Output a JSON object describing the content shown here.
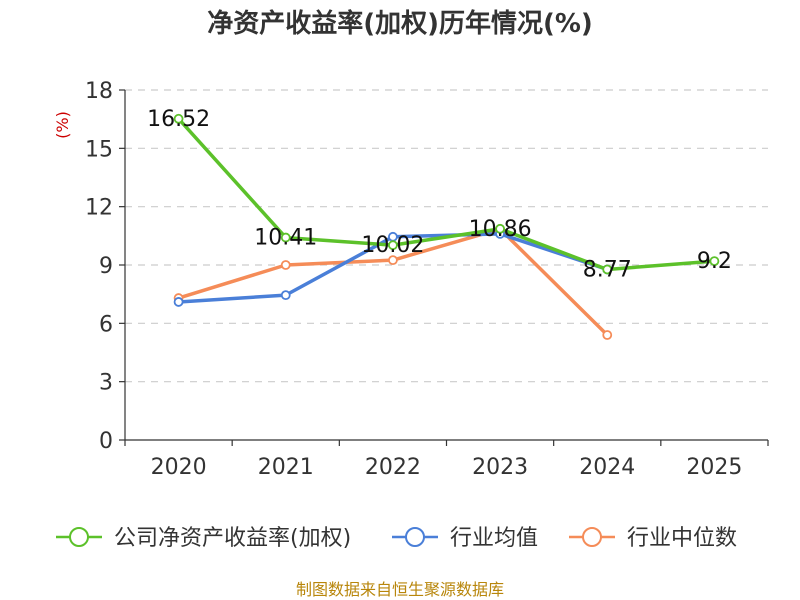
{
  "chart_data": {
    "type": "line",
    "title": "净资产收益率(加权)历年情况(%)",
    "ylabel": "(%)",
    "xlabel": "",
    "categories": [
      "2020",
      "2021",
      "2022",
      "2023",
      "2024",
      "2025"
    ],
    "ylim": [
      0,
      18
    ],
    "yticks": [
      "0",
      "3",
      "6",
      "9",
      "12",
      "15",
      "18"
    ],
    "grid": true,
    "legend_position": "bottom",
    "series": [
      {
        "name": "公司净资产收益率(加权)",
        "color": "#5cc12a",
        "values": [
          16.52,
          10.41,
          10.02,
          10.86,
          8.77,
          9.2
        ],
        "labels": [
          "16.52",
          "10.41",
          "10.02",
          "10.86",
          "8.77",
          "9.2"
        ]
      },
      {
        "name": "行业均值",
        "color": "#4a7fd8",
        "values": [
          7.1,
          7.45,
          10.45,
          10.6,
          8.77,
          null
        ]
      },
      {
        "name": "行业中位数",
        "color": "#f58c58",
        "values": [
          7.3,
          9.0,
          9.25,
          10.85,
          5.4,
          null
        ]
      }
    ],
    "source": "制图数据来自恒生聚源数据库"
  }
}
